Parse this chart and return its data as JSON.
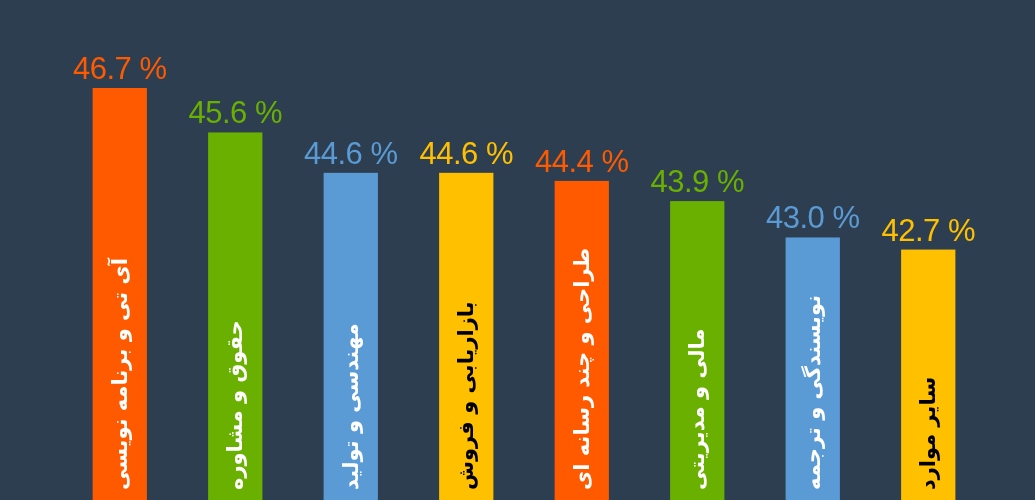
{
  "chart_data": {
    "type": "bar",
    "categories": [
      "آی تی و برنامه نویسی",
      "حقوق و مشاوره",
      "مهندسی و تولید",
      "بازاریابی و فروش",
      "طراحی و چند رسانه ای",
      "مالی و مدیریتی",
      "نویسندگی و ترجمه",
      "سایر موارد"
    ],
    "values": [
      46.7,
      45.6,
      44.6,
      44.6,
      44.4,
      43.9,
      43.0,
      42.7
    ],
    "colors": [
      "#ff5a00",
      "#6ab000",
      "#5b9bd5",
      "#ffc000",
      "#ff5a00",
      "#6ab000",
      "#5b9bd5",
      "#ffc000"
    ],
    "value_labels": [
      "46.7 %",
      "45.6 %",
      "44.6 %",
      "44.6 %",
      "44.4 %",
      "43.9 %",
      "43.0 %",
      "42.7 %"
    ],
    "ylim": [
      36.5,
      46.7
    ],
    "tick_labels": "x"
  }
}
